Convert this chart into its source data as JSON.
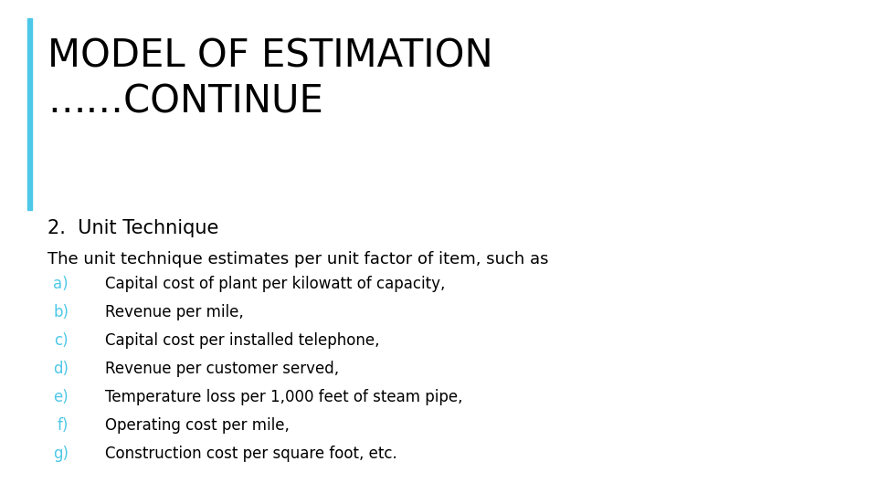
{
  "title_line1": "MODEL OF ESTIMATION",
  "title_line2": "……CONTINUE",
  "section_header": "2.  Unit Technique",
  "intro_text": "The unit technique estimates per unit factor of item, such as",
  "items": [
    [
      "a)",
      "Capital cost of plant per kilowatt of capacity,"
    ],
    [
      "b)",
      "Revenue per mile,"
    ],
    [
      "c)",
      "Capital cost per installed telephone,"
    ],
    [
      "d)",
      "Revenue per customer served,"
    ],
    [
      "e)",
      "Temperature loss per 1,000 feet of steam pipe,"
    ],
    [
      "f)",
      "Operating cost per mile,"
    ],
    [
      "g)",
      "Construction cost per square foot, etc."
    ]
  ],
  "bg_color": "#ffffff",
  "title_color": "#000000",
  "section_color": "#000000",
  "intro_color": "#000000",
  "bullet_label_color": "#4ec8e8",
  "bullet_text_color": "#000000",
  "bar_color": "#4ec8e8",
  "title_fontsize": 30,
  "section_fontsize": 15,
  "intro_fontsize": 13,
  "bullet_fontsize": 12
}
